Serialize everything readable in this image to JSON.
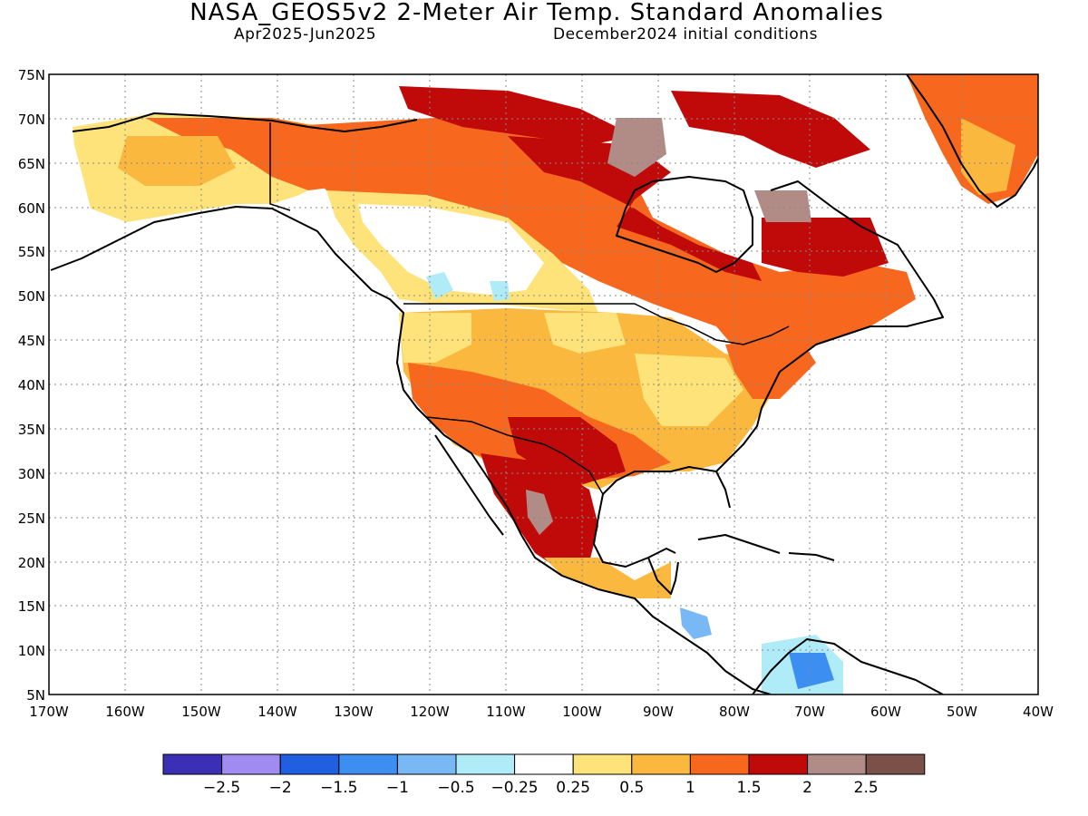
{
  "title": "NASA_GEOS5v2 2-Meter Air Temp. Standard Anomalies",
  "subtitle_left": "Apr2025-Jun2025",
  "subtitle_right": "December2024 initial conditions",
  "lat_labels": [
    "75N",
    "70N",
    "65N",
    "60N",
    "55N",
    "50N",
    "45N",
    "40N",
    "35N",
    "30N",
    "25N",
    "20N",
    "15N",
    "10N",
    "5N"
  ],
  "lon_labels": [
    "170W",
    "160W",
    "150W",
    "140W",
    "130W",
    "120W",
    "110W",
    "100W",
    "90W",
    "80W",
    "70W",
    "60W",
    "50W",
    "40W"
  ],
  "colorbar": {
    "colors": [
      "#3a2fb5",
      "#a08cf0",
      "#2060e0",
      "#3c8ef0",
      "#78b8f5",
      "#b0ecf8",
      "#ffffff",
      "#fde37a",
      "#fbb83f",
      "#f7681e",
      "#c00a0a",
      "#b18c86",
      "#7a5048"
    ],
    "labels": [
      "-2.5",
      "-2",
      "-1.5",
      "-1",
      "-0.5",
      "-0.25",
      "0.25",
      "0.5",
      "1",
      "1.5",
      "2",
      "2.5"
    ]
  }
}
